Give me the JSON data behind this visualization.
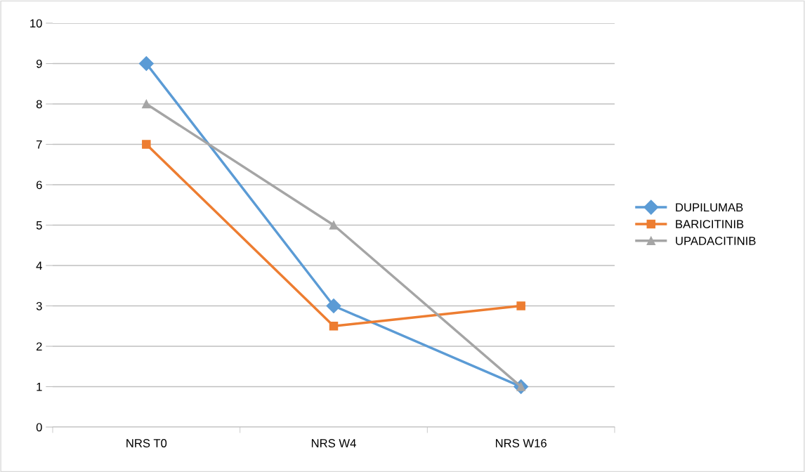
{
  "chart_data": {
    "type": "line",
    "categories": [
      "NRS T0",
      "NRS W4",
      "NRS W16"
    ],
    "series": [
      {
        "name": "DUPILUMAB",
        "color": "#5b9bd5",
        "marker": "diamond",
        "values": [
          9,
          3,
          1
        ]
      },
      {
        "name": "BARICITINIB",
        "color": "#ed7d31",
        "marker": "square",
        "values": [
          7,
          2.5,
          3
        ]
      },
      {
        "name": "UPADACITINIB",
        "color": "#a5a5a5",
        "marker": "triangle",
        "values": [
          8,
          5,
          1
        ]
      }
    ],
    "ylim": [
      0,
      10
    ],
    "yticks": [
      0,
      1,
      2,
      3,
      4,
      5,
      6,
      7,
      8,
      9,
      10
    ],
    "grid": "y",
    "legend": "right",
    "line_style": "solid"
  }
}
